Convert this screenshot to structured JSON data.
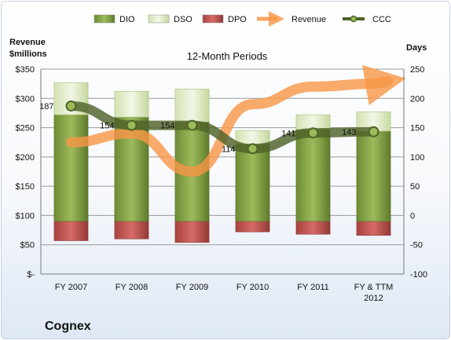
{
  "chart_data": {
    "type": "bar",
    "title": "12-Month Periods",
    "company": "Cognex",
    "left_axis_label": [
      "Revenue",
      "$millions"
    ],
    "right_axis_label": "Days",
    "categories": [
      [
        "FY 2007"
      ],
      [
        "FY 2008"
      ],
      [
        "FY 2009"
      ],
      [
        "FY 2010"
      ],
      [
        "FY 2011"
      ],
      [
        "FY & TTM",
        "2012"
      ]
    ],
    "left_axis": {
      "min": 0,
      "max": 350,
      "step": 50,
      "ticks": [
        "$-",
        "$50",
        "$100",
        "$150",
        "$200",
        "$250",
        "$300",
        "$350"
      ]
    },
    "right_axis": {
      "min": -100,
      "max": 250,
      "step": 50,
      "ticks": [
        "-100",
        "-50",
        "0",
        "50",
        "100",
        "150",
        "200",
        "250"
      ]
    },
    "series": [
      {
        "name": "DIO",
        "axis": "days",
        "values": [
          -10,
          -10,
          -10,
          -10,
          -10,
          -10
        ],
        "top_values": [
          172,
          168,
          160,
          122,
          147,
          144
        ],
        "color": "#77933c"
      },
      {
        "name": "DSO",
        "axis": "days",
        "values": [
          172,
          168,
          160,
          122,
          147,
          144
        ],
        "top_values": [
          227,
          212,
          216,
          145,
          172,
          177
        ],
        "color": "#d7e4bd"
      },
      {
        "name": "DPO",
        "axis": "days",
        "values": [
          -43,
          -40,
          -46,
          -28,
          -32,
          -34
        ],
        "top_values": [
          0,
          0,
          0,
          0,
          0,
          0
        ],
        "color": "#c0504d"
      },
      {
        "name": "Revenue",
        "axis": "revenue",
        "values": [
          225,
          240,
          175,
          290,
          320,
          325
        ],
        "color": "#f79646"
      },
      {
        "name": "CCC",
        "axis": "days",
        "values": [
          187,
          154,
          154,
          114,
          141,
          143
        ],
        "color": "#4f6228"
      }
    ],
    "data_labels": [
      "187",
      "154",
      "154",
      "114",
      "141",
      "143"
    ],
    "legend_position": "top",
    "grid": true
  }
}
